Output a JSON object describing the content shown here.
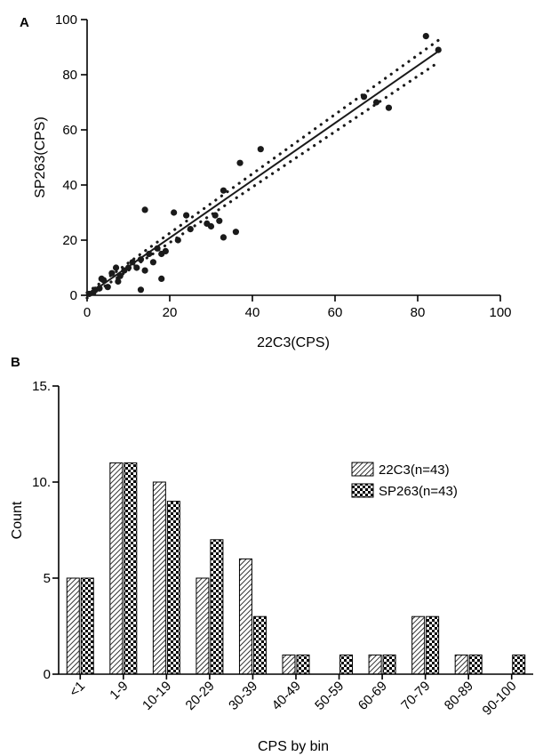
{
  "chart_data": [
    {
      "panel": "A",
      "type": "scatter",
      "xlabel": "22C3(CPS)",
      "ylabel": "SP263(CPS)",
      "xlim": [
        0,
        100
      ],
      "ylim": [
        0,
        100
      ],
      "xticks": [
        0,
        20,
        40,
        60,
        80,
        100
      ],
      "yticks": [
        0,
        20,
        40,
        60,
        80,
        100
      ],
      "grid": false,
      "points": [
        {
          "x": 0.5,
          "y": 0.5
        },
        {
          "x": 1.5,
          "y": 1
        },
        {
          "x": 2,
          "y": 2
        },
        {
          "x": 3,
          "y": 2.5
        },
        {
          "x": 3.5,
          "y": 6
        },
        {
          "x": 4,
          "y": 5.5
        },
        {
          "x": 5,
          "y": 3
        },
        {
          "x": 6,
          "y": 8
        },
        {
          "x": 7,
          "y": 10
        },
        {
          "x": 7.5,
          "y": 5
        },
        {
          "x": 8,
          "y": 7
        },
        {
          "x": 9,
          "y": 9
        },
        {
          "x": 10,
          "y": 10
        },
        {
          "x": 11,
          "y": 12
        },
        {
          "x": 12,
          "y": 10
        },
        {
          "x": 13,
          "y": 13
        },
        {
          "x": 13,
          "y": 2
        },
        {
          "x": 14,
          "y": 9
        },
        {
          "x": 14,
          "y": 31
        },
        {
          "x": 15,
          "y": 15
        },
        {
          "x": 16,
          "y": 12
        },
        {
          "x": 17,
          "y": 17
        },
        {
          "x": 18,
          "y": 15
        },
        {
          "x": 18,
          "y": 6
        },
        {
          "x": 19,
          "y": 16
        },
        {
          "x": 21,
          "y": 30
        },
        {
          "x": 22,
          "y": 20
        },
        {
          "x": 24,
          "y": 29
        },
        {
          "x": 25,
          "y": 24
        },
        {
          "x": 29,
          "y": 26
        },
        {
          "x": 30,
          "y": 25
        },
        {
          "x": 31,
          "y": 29
        },
        {
          "x": 32,
          "y": 27
        },
        {
          "x": 33,
          "y": 21
        },
        {
          "x": 33,
          "y": 38
        },
        {
          "x": 36,
          "y": 23
        },
        {
          "x": 37,
          "y": 48
        },
        {
          "x": 42,
          "y": 53
        },
        {
          "x": 67,
          "y": 72
        },
        {
          "x": 70,
          "y": 70
        },
        {
          "x": 73,
          "y": 68
        },
        {
          "x": 82,
          "y": 94
        },
        {
          "x": 85,
          "y": 89
        }
      ],
      "fit_line": {
        "x": [
          0,
          85
        ],
        "y": [
          0,
          88.5
        ]
      },
      "confidence_band": {
        "upper": {
          "x": [
            0,
            85
          ],
          "y": [
            1,
            92.5
          ]
        },
        "lower": {
          "x": [
            0,
            85
          ],
          "y": [
            -1,
            84.5
          ]
        }
      }
    },
    {
      "panel": "B",
      "type": "bar",
      "xlabel": "CPS by bin",
      "ylabel": "Count",
      "ylim": [
        0,
        15
      ],
      "yticks": [
        0,
        5,
        10,
        15
      ],
      "ytick_labels": [
        "0",
        "5",
        "10.",
        "15."
      ],
      "categories": [
        "<1",
        "1-9",
        "10-19",
        "20-29",
        "30-39",
        "40-49",
        "50-59",
        "60-69",
        "70-79",
        "80-89",
        "90-100"
      ],
      "series": [
        {
          "name": "22C3(n=43)",
          "values": [
            5,
            11,
            10,
            5,
            6,
            1,
            0,
            1,
            3,
            1,
            0
          ]
        },
        {
          "name": "SP263(n=43)",
          "values": [
            5,
            11,
            9,
            7,
            3,
            1,
            1,
            1,
            3,
            1,
            1
          ]
        }
      ],
      "legend_position": "right",
      "grid": false
    }
  ],
  "colors": {
    "marks": "#1a1a1a",
    "axes": "#000000",
    "background": "#ffffff"
  },
  "patterns": {
    "series_0": "diagonal-hatch",
    "series_1": "checkerboard"
  }
}
